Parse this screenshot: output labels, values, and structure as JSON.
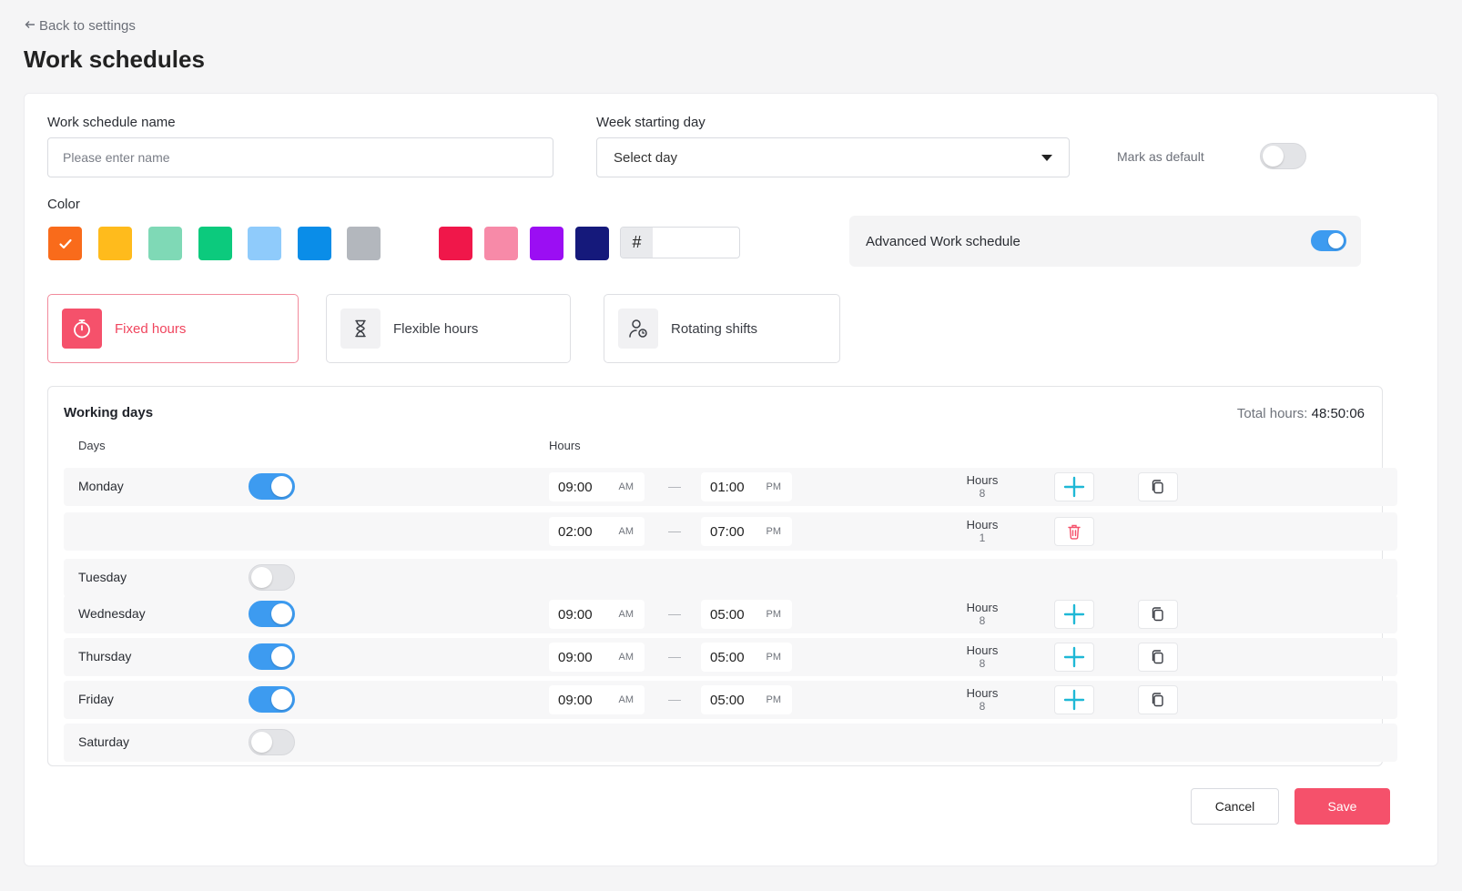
{
  "header": {
    "back_label": "Back to settings",
    "title": "Work schedules"
  },
  "form": {
    "name_label": "Work schedule name",
    "name_placeholder": "Please enter name",
    "week_label": "Week starting day",
    "week_value": "Select day",
    "default_label": "Mark as default",
    "default_on": false,
    "color_label": "Color",
    "colors": [
      "#f96b1b",
      "#ffbb1c",
      "#7fd9b6",
      "#0cca7d",
      "#8fcbfb",
      "#0a8de8",
      "#b3b7bd",
      "#f0174a",
      "#f78aa8",
      "#9b0ef3",
      "#15197b"
    ],
    "selected_color_index": 0,
    "hex_symbol": "#",
    "hex_value": "",
    "advanced_label": "Advanced Work schedule",
    "advanced_on": true
  },
  "schedule_types": [
    {
      "label": "Fixed hours",
      "icon": "stopwatch-icon",
      "active": true
    },
    {
      "label": "Flexible hours",
      "icon": "hourglass-icon",
      "active": false
    },
    {
      "label": "Rotating shifts",
      "icon": "user-clock-icon",
      "active": false
    }
  ],
  "working_days": {
    "title": "Working days",
    "total_label": "Total hours:",
    "total_value": "48:50:06",
    "col_days": "Days",
    "col_hours": "Hours",
    "hours_label": "Hours",
    "dash": "—",
    "rows": [
      {
        "day": "Monday",
        "on": true,
        "start": "09:00",
        "start_ampm": "AM",
        "end": "01:00",
        "end_ampm": "PM",
        "hours": "8",
        "action": "add"
      },
      {
        "day": "",
        "on": null,
        "start": "02:00",
        "start_ampm": "AM",
        "end": "07:00",
        "end_ampm": "PM",
        "hours": "1",
        "action": "delete"
      },
      {
        "day": "Tuesday",
        "on": false
      },
      {
        "day": "Wednesday",
        "on": true,
        "start": "09:00",
        "start_ampm": "AM",
        "end": "05:00",
        "end_ampm": "PM",
        "hours": "8",
        "action": "add"
      },
      {
        "day": "Thursday",
        "on": true,
        "start": "09:00",
        "start_ampm": "AM",
        "end": "05:00",
        "end_ampm": "PM",
        "hours": "8",
        "action": "add"
      },
      {
        "day": "Friday",
        "on": true,
        "start": "09:00",
        "start_ampm": "AM",
        "end": "05:00",
        "end_ampm": "PM",
        "hours": "8",
        "action": "add"
      },
      {
        "day": "Saturday",
        "on": false
      }
    ]
  },
  "footer": {
    "cancel_label": "Cancel",
    "save_label": "Save"
  },
  "accent": {
    "primary": "#f5516b",
    "toggle_on": "#3d9bf0",
    "add_icon": "#1fb8d6"
  }
}
